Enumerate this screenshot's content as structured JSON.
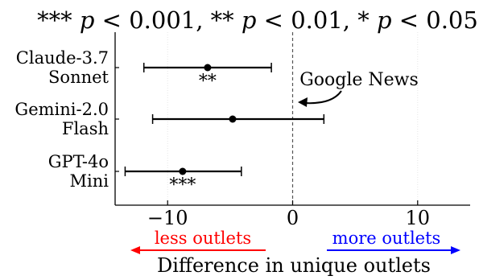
{
  "chart_data": {
    "type": "dot-with-error-bars",
    "title_parts": [
      {
        "stars": "***",
        "p": "p",
        "op": "<",
        "val": "0.001,"
      },
      {
        "stars": "**",
        "p": "p",
        "op": "<",
        "val": "0.01,"
      },
      {
        "stars": "*",
        "p": "p",
        "op": "<",
        "val": "0.05"
      }
    ],
    "xlabel": "Difference in unique outlets",
    "xlim": [
      -14.2,
      14.2
    ],
    "xticks": [
      -10,
      0,
      10
    ],
    "xtick_labels": [
      "−10",
      "0",
      "10"
    ],
    "reference_line": {
      "x": 0,
      "label": "Google News"
    },
    "direction_labels": {
      "left": {
        "text": "less outlets",
        "color": "#ff0000"
      },
      "right": {
        "text": "more outlets",
        "color": "#0000ff"
      }
    },
    "series": [
      {
        "name_lines": [
          "Claude-3.7",
          "Sonnet"
        ],
        "estimate": -6.8,
        "ci_low": -11.9,
        "ci_high": -1.7,
        "significance": "**"
      },
      {
        "name_lines": [
          "Gemini-2.0",
          "Flash"
        ],
        "estimate": -4.8,
        "ci_low": -11.2,
        "ci_high": 2.5,
        "significance": ""
      },
      {
        "name_lines": [
          "GPT-4o",
          "Mini"
        ],
        "estimate": -8.8,
        "ci_low": -13.4,
        "ci_high": -4.1,
        "significance": "***"
      }
    ]
  }
}
